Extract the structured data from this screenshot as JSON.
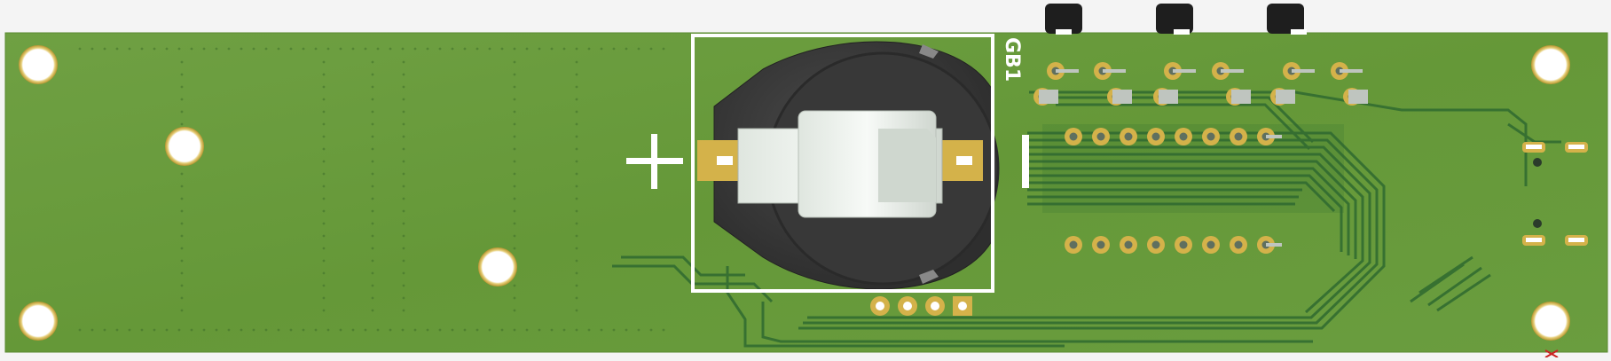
{
  "board": {
    "refdes": "GB1",
    "plus_symbol": "+",
    "minus_symbol": "−"
  },
  "colors": {
    "background": "#f4f4f4",
    "board": "#6a9a3c",
    "trace": "#2f6a30",
    "pad": "#d4b24a",
    "silk": "#ffffff",
    "holder": "#3c3c3c",
    "clip": "#eef2ee"
  }
}
